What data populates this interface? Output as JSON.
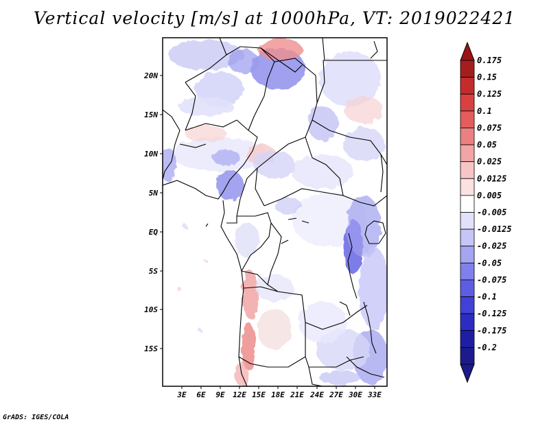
{
  "title": "Vertical velocity [m/s] at 1000hPa, VT: 2019022421",
  "footer": "GrADS: IGES/COLA",
  "map": {
    "lat_labels": [
      "20N",
      "15N",
      "10N",
      "5N",
      "EQ",
      "5S",
      "10S",
      "15S"
    ],
    "lon_labels": [
      "3E",
      "6E",
      "9E",
      "12E",
      "15E",
      "18E",
      "21E",
      "24E",
      "27E",
      "30E",
      "33E"
    ]
  },
  "colorbar": {
    "labels": [
      "0.175",
      "0.15",
      "0.125",
      "0.1",
      "0.075",
      "0.05",
      "0.025",
      "0.0125",
      "0.005",
      "-0.005",
      "-0.0125",
      "-0.025",
      "-0.05",
      "-0.075",
      "-0.1",
      "-0.125",
      "-0.175",
      "-0.2"
    ],
    "colors": [
      "#a51e1e",
      "#c42c2c",
      "#d94141",
      "#e35d5d",
      "#ec8080",
      "#f2a5a5",
      "#f7c5c5",
      "#fbe1e1",
      "#ffffff",
      "#e1e1fb",
      "#c5c5f7",
      "#a5a5f2",
      "#8080ec",
      "#5d5de3",
      "#4141d9",
      "#2c2cc4",
      "#1e1ea5",
      "#1b1b8c"
    ],
    "top_color": "#9a1414",
    "bottom_color": "#1a1a8a"
  }
}
